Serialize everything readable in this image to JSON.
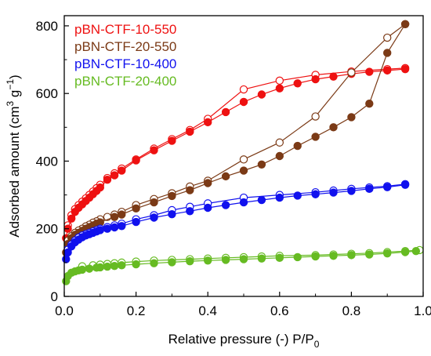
{
  "chart_data": {
    "type": "scatter",
    "title": "",
    "xlabel_main": "Relative pressure (-) P/P",
    "xlabel_sub": "0",
    "ylabel_main": "Adsorbed amount (cm",
    "ylabel_sup1": "3",
    "ylabel_mid": " g",
    "ylabel_sup2": "−1",
    "ylabel_end": ")",
    "xlim": [
      0.0,
      1.0
    ],
    "ylim": [
      0,
      830
    ],
    "x_ticks": [
      0.0,
      0.2,
      0.4,
      0.6,
      0.8,
      1.0
    ],
    "x_tick_labels": [
      "0.0",
      "0.2",
      "0.4",
      "0.6",
      "0.8",
      "1.0"
    ],
    "y_ticks": [
      0,
      200,
      400,
      600,
      800
    ],
    "y_tick_labels": [
      "0",
      "200",
      "400",
      "600",
      "800"
    ],
    "grid": false,
    "legend_position": "top-left",
    "legend_note": "filled markers = adsorption, open markers = desorption",
    "series": [
      {
        "name": "pBN-CTF-10-550",
        "color": "#ee1111",
        "adsorption": [
          [
            0.005,
            172
          ],
          [
            0.01,
            200
          ],
          [
            0.02,
            230
          ],
          [
            0.03,
            250
          ],
          [
            0.04,
            262
          ],
          [
            0.05,
            272
          ],
          [
            0.06,
            282
          ],
          [
            0.07,
            292
          ],
          [
            0.08,
            302
          ],
          [
            0.09,
            312
          ],
          [
            0.1,
            322
          ],
          [
            0.12,
            345
          ],
          [
            0.14,
            358
          ],
          [
            0.16,
            372
          ],
          [
            0.2,
            402
          ],
          [
            0.25,
            432
          ],
          [
            0.3,
            460
          ],
          [
            0.35,
            487
          ],
          [
            0.4,
            515
          ],
          [
            0.45,
            545
          ],
          [
            0.5,
            575
          ],
          [
            0.55,
            597
          ],
          [
            0.6,
            615
          ],
          [
            0.65,
            630
          ],
          [
            0.7,
            642
          ],
          [
            0.75,
            650
          ],
          [
            0.8,
            658
          ],
          [
            0.85,
            664
          ],
          [
            0.9,
            668
          ],
          [
            0.95,
            672
          ]
        ],
        "desorption": [
          [
            0.95,
            675
          ],
          [
            0.9,
            672
          ],
          [
            0.8,
            665
          ],
          [
            0.7,
            655
          ],
          [
            0.6,
            638
          ],
          [
            0.5,
            612
          ],
          [
            0.4,
            525
          ],
          [
            0.35,
            492
          ],
          [
            0.3,
            465
          ],
          [
            0.25,
            437
          ],
          [
            0.2,
            405
          ],
          [
            0.16,
            378
          ],
          [
            0.14,
            364
          ],
          [
            0.12,
            350
          ],
          [
            0.1,
            330
          ],
          [
            0.09,
            320
          ],
          [
            0.08,
            310
          ],
          [
            0.07,
            300
          ],
          [
            0.06,
            290
          ],
          [
            0.05,
            280
          ],
          [
            0.04,
            270
          ],
          [
            0.03,
            258
          ],
          [
            0.02,
            240
          ],
          [
            0.01,
            210
          ]
        ]
      },
      {
        "name": "pBN-CTF-20-550",
        "color": "#7b3a16",
        "adsorption": [
          [
            0.005,
            130
          ],
          [
            0.01,
            155
          ],
          [
            0.02,
            172
          ],
          [
            0.03,
            182
          ],
          [
            0.04,
            188
          ],
          [
            0.05,
            194
          ],
          [
            0.06,
            200
          ],
          [
            0.07,
            205
          ],
          [
            0.08,
            210
          ],
          [
            0.09,
            215
          ],
          [
            0.1,
            219
          ],
          [
            0.14,
            235
          ],
          [
            0.16,
            242
          ],
          [
            0.2,
            260
          ],
          [
            0.25,
            278
          ],
          [
            0.3,
            297
          ],
          [
            0.35,
            314
          ],
          [
            0.4,
            335
          ],
          [
            0.45,
            355
          ],
          [
            0.5,
            372
          ],
          [
            0.55,
            390
          ],
          [
            0.6,
            415
          ],
          [
            0.65,
            445
          ],
          [
            0.7,
            472
          ],
          [
            0.75,
            500
          ],
          [
            0.8,
            530
          ],
          [
            0.85,
            570
          ],
          [
            0.9,
            720
          ],
          [
            0.95,
            805
          ]
        ],
        "desorption": [
          [
            0.95,
            805
          ],
          [
            0.9,
            765
          ],
          [
            0.8,
            662
          ],
          [
            0.7,
            532
          ],
          [
            0.6,
            455
          ],
          [
            0.5,
            405
          ],
          [
            0.4,
            342
          ],
          [
            0.35,
            325
          ],
          [
            0.3,
            305
          ],
          [
            0.25,
            288
          ],
          [
            0.2,
            270
          ],
          [
            0.16,
            250
          ],
          [
            0.14,
            242
          ],
          [
            0.12,
            235
          ],
          [
            0.1,
            228
          ],
          [
            0.09,
            222
          ],
          [
            0.08,
            218
          ],
          [
            0.07,
            212
          ],
          [
            0.06,
            207
          ],
          [
            0.05,
            200
          ],
          [
            0.04,
            195
          ],
          [
            0.03,
            188
          ],
          [
            0.02,
            178
          ],
          [
            0.01,
            165
          ]
        ]
      },
      {
        "name": "pBN-CTF-10-400",
        "color": "#1111ee",
        "adsorption": [
          [
            0.005,
            110
          ],
          [
            0.01,
            130
          ],
          [
            0.02,
            148
          ],
          [
            0.03,
            160
          ],
          [
            0.04,
            168
          ],
          [
            0.05,
            175
          ],
          [
            0.06,
            180
          ],
          [
            0.07,
            184
          ],
          [
            0.08,
            188
          ],
          [
            0.09,
            192
          ],
          [
            0.1,
            196
          ],
          [
            0.12,
            200
          ],
          [
            0.14,
            204
          ],
          [
            0.16,
            208
          ],
          [
            0.2,
            220
          ],
          [
            0.25,
            233
          ],
          [
            0.3,
            243
          ],
          [
            0.35,
            252
          ],
          [
            0.4,
            262
          ],
          [
            0.45,
            270
          ],
          [
            0.5,
            278
          ],
          [
            0.55,
            285
          ],
          [
            0.6,
            292
          ],
          [
            0.65,
            298
          ],
          [
            0.7,
            302
          ],
          [
            0.75,
            307
          ],
          [
            0.8,
            312
          ],
          [
            0.85,
            318
          ],
          [
            0.9,
            323
          ],
          [
            0.95,
            330
          ]
        ],
        "desorption": [
          [
            0.95,
            332
          ],
          [
            0.9,
            326
          ],
          [
            0.85,
            322
          ],
          [
            0.8,
            318
          ],
          [
            0.75,
            313
          ],
          [
            0.7,
            308
          ],
          [
            0.6,
            300
          ],
          [
            0.5,
            292
          ],
          [
            0.4,
            275
          ],
          [
            0.35,
            265
          ],
          [
            0.3,
            255
          ],
          [
            0.25,
            240
          ],
          [
            0.2,
            228
          ],
          [
            0.16,
            215
          ],
          [
            0.14,
            210
          ],
          [
            0.12,
            205
          ],
          [
            0.1,
            200
          ],
          [
            0.09,
            196
          ],
          [
            0.08,
            192
          ],
          [
            0.07,
            188
          ],
          [
            0.06,
            184
          ],
          [
            0.05,
            180
          ],
          [
            0.04,
            174
          ],
          [
            0.03,
            165
          ],
          [
            0.02,
            153
          ],
          [
            0.01,
            138
          ]
        ]
      },
      {
        "name": "pBN-CTF-20-400",
        "color": "#66bb22",
        "adsorption": [
          [
            0.005,
            45
          ],
          [
            0.01,
            60
          ],
          [
            0.02,
            70
          ],
          [
            0.03,
            74
          ],
          [
            0.04,
            77
          ],
          [
            0.05,
            79
          ],
          [
            0.07,
            82
          ],
          [
            0.09,
            85
          ],
          [
            0.1,
            86
          ],
          [
            0.12,
            88
          ],
          [
            0.14,
            90
          ],
          [
            0.16,
            92
          ],
          [
            0.2,
            95
          ],
          [
            0.25,
            98
          ],
          [
            0.3,
            101
          ],
          [
            0.35,
            104
          ],
          [
            0.4,
            106
          ],
          [
            0.45,
            108
          ],
          [
            0.5,
            110
          ],
          [
            0.55,
            112
          ],
          [
            0.6,
            114
          ],
          [
            0.65,
            116
          ],
          [
            0.7,
            118
          ],
          [
            0.75,
            120
          ],
          [
            0.8,
            122
          ],
          [
            0.85,
            124
          ],
          [
            0.9,
            127
          ],
          [
            0.95,
            131
          ],
          [
            0.98,
            134
          ]
        ],
        "desorption": [
          [
            0.99,
            137
          ],
          [
            0.95,
            134
          ],
          [
            0.9,
            131
          ],
          [
            0.85,
            128
          ],
          [
            0.8,
            126
          ],
          [
            0.75,
            124
          ],
          [
            0.7,
            122
          ],
          [
            0.6,
            120
          ],
          [
            0.55,
            118
          ],
          [
            0.5,
            116
          ],
          [
            0.45,
            114
          ],
          [
            0.4,
            112
          ],
          [
            0.35,
            110
          ],
          [
            0.3,
            108
          ],
          [
            0.25,
            106
          ],
          [
            0.2,
            103
          ],
          [
            0.16,
            100
          ],
          [
            0.14,
            98
          ],
          [
            0.12,
            96
          ],
          [
            0.1,
            94
          ],
          [
            0.08,
            92
          ],
          [
            0.05,
            89
          ]
        ]
      }
    ]
  }
}
